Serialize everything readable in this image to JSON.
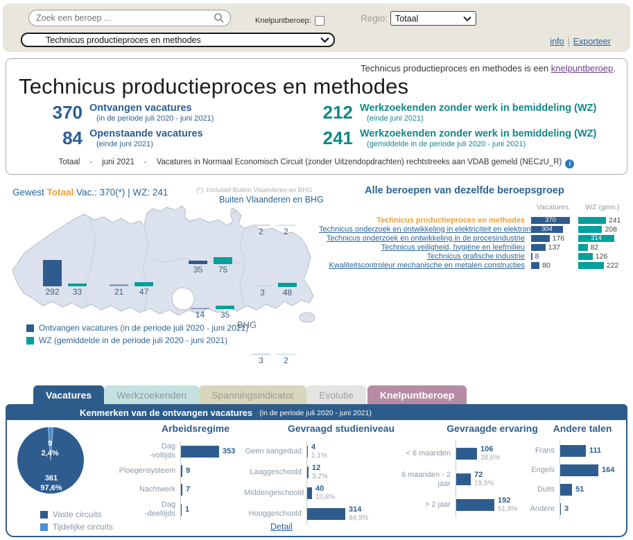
{
  "colors": {
    "blue": "#2e5c8e",
    "blue_medium": "#8fa2c4",
    "blue_light": "#ccd7e8",
    "teal": "#00a09b",
    "teal_light": "#d4ebec",
    "stat_blue": "#2b5d93",
    "stat_teal": "#0e8888",
    "orange": "#f0a030",
    "slice_blue": "#4a90d9",
    "panel_blue": "#2e5c8a"
  },
  "topbar": {
    "search_placeholder": "Zoek een beroep ...",
    "knelpunt_label": "Knelpuntberoep:",
    "regio_label": "Regio:",
    "regio_value": "Totaal",
    "profession_select": "Technicus productieproces en methodes",
    "info_link": "info",
    "link_sep": "|",
    "export_link": "Exporteer"
  },
  "header": {
    "note_prefix": "Technicus productieproces en methodes is een ",
    "note_link": "knelpuntberoep",
    "note_suffix": ".",
    "title": "Technicus productieproces en methodes",
    "stats": [
      {
        "value": "370",
        "label": "Ontvangen vacatures",
        "sub": "(in de periode juli 2020 - juni 2021)",
        "color": "blue"
      },
      {
        "value": "212",
        "label": "Werkzoekenden zonder werk in bemiddeling (WZ)",
        "sub": "(einde juni 2021)",
        "color": "teal"
      },
      {
        "value": "84",
        "label": "Openstaande vacatures",
        "sub": "(einde juni 2021)",
        "color": "blue"
      },
      {
        "value": "241",
        "label": "Werkzoekenden zonder werk in bemiddeling (WZ)",
        "sub": "(gemiddelde in de periode juli 2020 - juni 2021)",
        "color": "teal"
      }
    ],
    "footer": {
      "part1": "Totaal",
      "sep": "-",
      "part2": "juni 2021",
      "part3": "Vacatures in Normaal Economisch Circuit (zonder Uitzendopdrachten) rechtstreeks aan VDAB gemeld (NECzU_R)",
      "info_icon": "i"
    }
  },
  "map_section": {
    "summary_gewest": "Gewest",
    "summary_totaal": "Totaal",
    "summary_rest": "Vac.: 370(*) | WZ: 241",
    "footnote": "(*): Inclusief Buiten Vlaanderen en BHG",
    "buiten_label": "Buiten Vlaanderen en BHG",
    "bhg_label": "BHG",
    "legend": [
      {
        "label": "Ontvangen vacatures (in de periode juli 2020 - juni 2021)",
        "color": "#2e5c8e"
      },
      {
        "label": "WZ (gemiddelde in de periode juli 2020 - juni 2021)",
        "color": "#00a09b"
      }
    ],
    "regions": [
      {
        "name": "West-Vlaanderen",
        "vac": 292,
        "wz": 33
      },
      {
        "name": "Oost-Vlaanderen",
        "vac": 21,
        "wz": 47
      },
      {
        "name": "Antwerpen",
        "vac": 35,
        "wz": 75
      },
      {
        "name": "Vlaams-Brabant",
        "vac": 14,
        "wz": 35
      },
      {
        "name": "Limburg",
        "vac": 3,
        "wz": 48
      },
      {
        "name": "Buiten Vlaanderen en BHG",
        "vac": 2,
        "wz": 2
      },
      {
        "name": "BHG",
        "vac": 3,
        "wz": 2
      }
    ]
  },
  "beroepsgroep": {
    "title": "Alle beroepen van dezelfde beroepsgroep",
    "col_vac": "Vacatures",
    "col_wz": "WZ (gem.)",
    "vac_max": 370,
    "wz_max": 314,
    "rows": [
      {
        "label": "Technicus productieproces en methodes",
        "vac": 370,
        "wz": 241,
        "selected": true,
        "vac_inside": true,
        "wz_inside": false
      },
      {
        "label": "Technicus onderzoek en ontwikkeling in elektriciteit en elektronica",
        "vac": 304,
        "wz": 208,
        "selected": false,
        "vac_inside": true,
        "wz_inside": false
      },
      {
        "label": "Technicus onderzoek en ontwikkeling in de procesindustrie",
        "vac": 176,
        "wz": 314,
        "selected": false,
        "vac_inside": false,
        "wz_inside": true
      },
      {
        "label": "Technicus veiligheid, hygiëne en leefmilieu",
        "vac": 137,
        "wz": 82,
        "selected": false,
        "vac_inside": false,
        "wz_inside": false
      },
      {
        "label": "Technicus grafische industrie",
        "vac": 8,
        "wz": 126,
        "selected": false,
        "vac_inside": false,
        "wz_inside": false
      },
      {
        "label": "Kwaliteitscontroleur mechanische en metalen constructies",
        "vac": 80,
        "wz": 222,
        "selected": false,
        "vac_inside": false,
        "wz_inside": false
      }
    ]
  },
  "tabs": [
    {
      "label": "Vacatures",
      "style": "blue",
      "active": true
    },
    {
      "label": "Werkzoekenden",
      "style": "mint",
      "active": false
    },
    {
      "label": "Spanningsindicator",
      "style": "olive",
      "active": false
    },
    {
      "label": "Evolutie",
      "style": "grey",
      "active": false
    },
    {
      "label": "Knelpuntberoep",
      "style": "mauve",
      "active": false
    }
  ],
  "vacatures_panel": {
    "header_title": "Kenmerken van de ontvangen vacatures",
    "header_sub": "(in de periode juli 2020 - juni 2021)",
    "pie": {
      "slices": [
        {
          "label": "Vaste circuits",
          "value": "361",
          "pct": "97,6%",
          "color": "#2e5c8e"
        },
        {
          "label": "Tijdelijke circuits",
          "value": "9",
          "pct": "2,4%",
          "color": "#4a90d9"
        }
      ]
    },
    "detail_link": "Detail",
    "charts": [
      {
        "title": "Arbeidsregime",
        "max": 353,
        "bars": [
          {
            "label": "Dag\n-voltijds",
            "value": "353"
          },
          {
            "label": "Ploegensysteem",
            "value": "9"
          },
          {
            "label": "Nachtwerk",
            "value": "7"
          },
          {
            "label": "Dag\n-deeltijds",
            "value": "1"
          }
        ]
      },
      {
        "title": "Gevraagd studieniveau",
        "max": 314,
        "bars": [
          {
            "label": "Geen aangeduid",
            "value": "4",
            "pct": "1,1%"
          },
          {
            "label": "Laaggeschoold",
            "value": "12",
            "pct": "3,2%"
          },
          {
            "label": "Middengeschoold",
            "value": "40",
            "pct": "10,8%"
          },
          {
            "label": "Hooggeschoold",
            "value": "314",
            "pct": "84,9%"
          }
        ]
      },
      {
        "title": "Gevraagde ervaring",
        "max": 192,
        "bars": [
          {
            "label": "< 6 maanden",
            "value": "106",
            "pct": "28,6%"
          },
          {
            "label": "6 maanden - 2 jaar",
            "value": "72",
            "pct": "19,5%"
          },
          {
            "label": "> 2 jaar",
            "value": "192",
            "pct": "51,9%"
          }
        ]
      },
      {
        "title": "Andere talen",
        "max": 164,
        "bars": [
          {
            "label": "Frans",
            "value": "111"
          },
          {
            "label": "Engels",
            "value": "164"
          },
          {
            "label": "Duits",
            "value": "51"
          },
          {
            "label": "Andere",
            "value": "3"
          }
        ]
      }
    ]
  }
}
